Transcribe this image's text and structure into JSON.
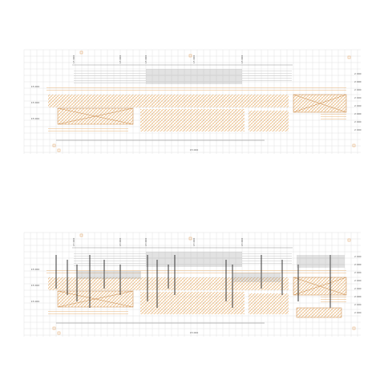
{
  "drawings": [
    {
      "left_labels": [
        "15 000",
        "15 000",
        "15 000"
      ],
      "right_labels": [
        "2 000",
        "2 000",
        "2 000",
        "2 000",
        "2 000",
        "2 000",
        "2 000",
        "2 000"
      ],
      "top_labels": [
        "15 000",
        "15 000",
        "15 000",
        "15 000",
        "15 000"
      ],
      "bottom_label": "15 000"
    },
    {
      "left_labels": [
        "15 000",
        "15 000",
        "15 000"
      ],
      "right_labels": [
        "2 000",
        "2 000",
        "2 000",
        "2 000",
        "2 000",
        "2 000",
        "2 000",
        "2 000"
      ],
      "top_labels": [
        "15 000",
        "15 000",
        "15 000",
        "15 000",
        "15 000"
      ],
      "bottom_label": "15 000"
    }
  ]
}
